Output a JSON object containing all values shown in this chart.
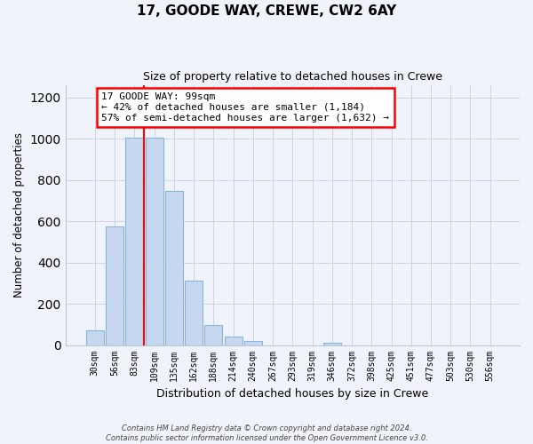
{
  "title": "17, GOODE WAY, CREWE, CW2 6AY",
  "subtitle": "Size of property relative to detached houses in Crewe",
  "xlabel": "Distribution of detached houses by size in Crewe",
  "ylabel": "Number of detached properties",
  "bar_labels": [
    "30sqm",
    "56sqm",
    "83sqm",
    "109sqm",
    "135sqm",
    "162sqm",
    "188sqm",
    "214sqm",
    "240sqm",
    "267sqm",
    "293sqm",
    "319sqm",
    "346sqm",
    "372sqm",
    "398sqm",
    "425sqm",
    "451sqm",
    "477sqm",
    "503sqm",
    "530sqm",
    "556sqm"
  ],
  "bar_values": [
    70,
    575,
    1005,
    1005,
    745,
    310,
    95,
    40,
    20,
    0,
    0,
    0,
    10,
    0,
    0,
    0,
    0,
    0,
    0,
    0,
    0
  ],
  "bar_color": "#c5d8f0",
  "bar_edge_color": "#8ab4d8",
  "property_line_x": 2.5,
  "property_line_color": "red",
  "annotation_title": "17 GOODE WAY: 99sqm",
  "annotation_line1": "← 42% of detached houses are smaller (1,184)",
  "annotation_line2": "57% of semi-detached houses are larger (1,632) →",
  "annotation_box_color": "white",
  "annotation_box_edge_color": "red",
  "ylim": [
    0,
    1260
  ],
  "yticks": [
    0,
    200,
    400,
    600,
    800,
    1000,
    1200
  ],
  "footnote1": "Contains HM Land Registry data © Crown copyright and database right 2024.",
  "footnote2": "Contains public sector information licensed under the Open Government Licence v3.0.",
  "background_color": "#f0f4fa"
}
